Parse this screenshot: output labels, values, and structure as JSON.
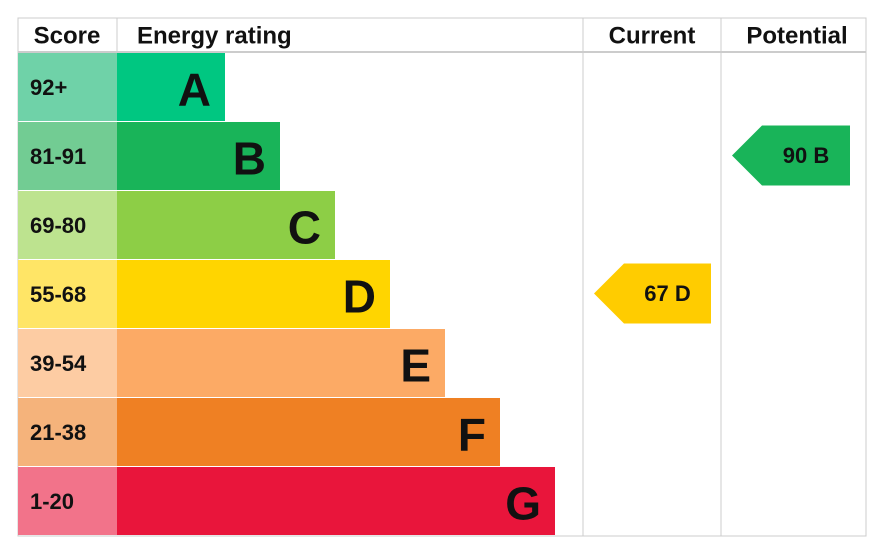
{
  "header": {
    "score": "Score",
    "energy_rating": "Energy rating",
    "current": "Current",
    "potential": "Potential"
  },
  "bands": [
    {
      "score": "92+",
      "letter": "A",
      "color": "#00c781",
      "score_color": "#6fd2a8"
    },
    {
      "score": "81-91",
      "letter": "B",
      "color": "#19b459",
      "score_color": "#72cc93"
    },
    {
      "score": "69-80",
      "letter": "C",
      "color": "#8dce46",
      "score_color": "#bde38f"
    },
    {
      "score": "55-68",
      "letter": "D",
      "color": "#ffd500",
      "score_color": "#ffe566"
    },
    {
      "score": "39-54",
      "letter": "E",
      "color": "#fcaa65",
      "score_color": "#fdcca3"
    },
    {
      "score": "21-38",
      "letter": "F",
      "color": "#ef8023",
      "score_color": "#f5b37b"
    },
    {
      "score": "1-20",
      "letter": "G",
      "color": "#e9153b",
      "score_color": "#f2738a"
    }
  ],
  "current": {
    "label": "67 D",
    "color": "#ffcc00"
  },
  "potential": {
    "label": "90 B",
    "color": "#19b459"
  }
}
